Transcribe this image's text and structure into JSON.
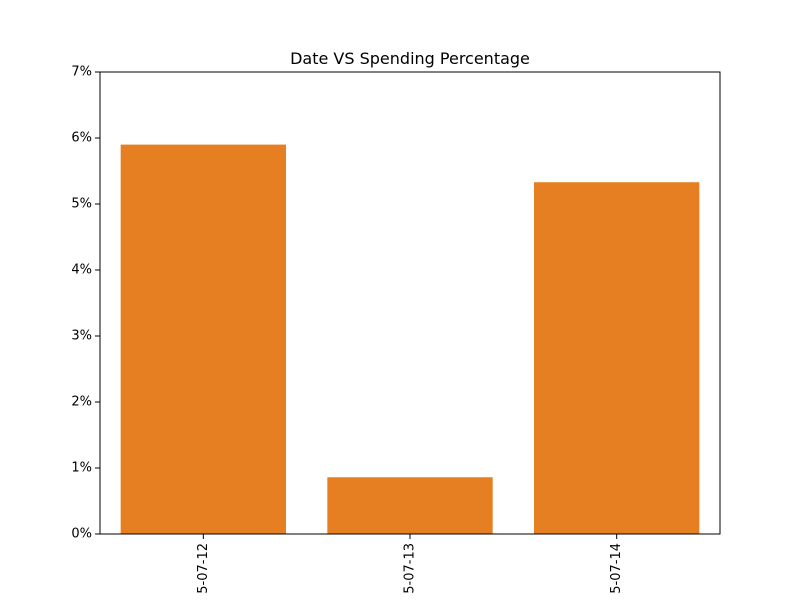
{
  "chart_data": {
    "type": "bar",
    "title": "Date VS Spending Percentage",
    "xlabel": "",
    "ylabel": "",
    "categories": [
      "5-07-12",
      "5-07-13",
      "5-07-14"
    ],
    "values": [
      5.9,
      0.86,
      5.33
    ],
    "ylim": [
      0,
      7
    ],
    "yticks": [
      0,
      1,
      2,
      3,
      4,
      5,
      6,
      7
    ],
    "ytick_suffix": "%",
    "grid": false,
    "legend": "none",
    "bar_color": "#e67e22"
  }
}
